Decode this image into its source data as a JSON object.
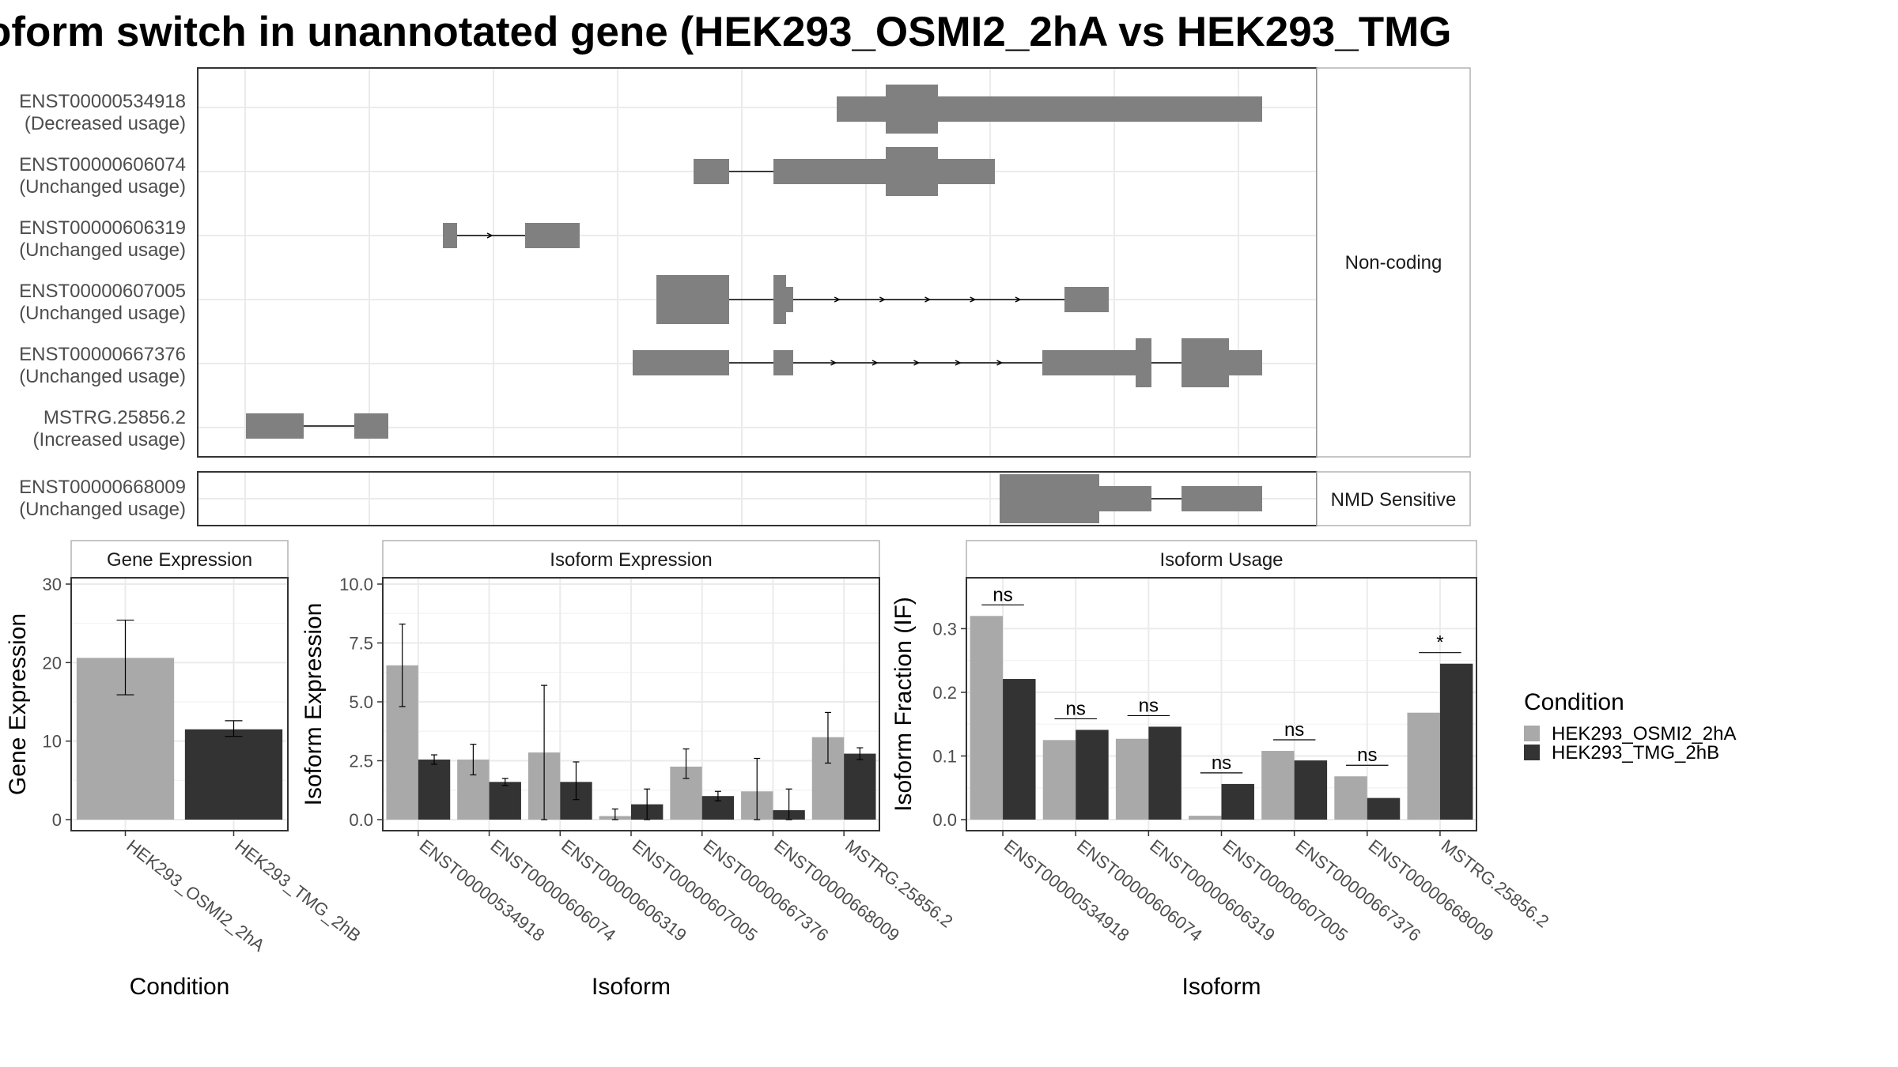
{
  "title": "oform switch in unannotated gene (HEK293_OSMI2_2hA vs HEK293_TMG",
  "colors": {
    "cond1": "#a9a9a9",
    "cond2": "#333333",
    "exon": "#808080",
    "grid": "#ebebeb",
    "border": "#333333",
    "strip_border": "#b3b3b3"
  },
  "transcript_panels": [
    {
      "strip": "Non-coding",
      "tracks": [
        {
          "id": "ENST00000534918",
          "usage": "(Decreased usage)"
        },
        {
          "id": "ENST00000606074",
          "usage": "(Unchanged usage)"
        },
        {
          "id": "ENST00000606319",
          "usage": "(Unchanged usage)"
        },
        {
          "id": "ENST00000607005",
          "usage": "(Unchanged usage)"
        },
        {
          "id": "ENST00000667376",
          "usage": "(Unchanged usage)"
        },
        {
          "id": "MSTRG.25856.2",
          "usage": "(Increased usage)"
        }
      ]
    },
    {
      "strip": "NMD Sensitive",
      "tracks": [
        {
          "id": "ENST00000668009",
          "usage": "(Unchanged usage)"
        }
      ]
    }
  ],
  "chart_data": [
    {
      "type": "bar",
      "title": "Gene Expression",
      "xlabel": "Condition",
      "ylabel": "Gene Expression",
      "ylim": [
        0,
        30
      ],
      "yticks": [
        0,
        10,
        20,
        30
      ],
      "categories": [
        "HEK293_OSMI2_2hA",
        "HEK293_TMG_2hB"
      ],
      "values": [
        20.6,
        11.5
      ],
      "error": [
        [
          15.9,
          25.4
        ],
        [
          10.6,
          12.6
        ]
      ]
    },
    {
      "type": "bar",
      "title": "Isoform Expression",
      "xlabel": "Isoform",
      "ylabel": "Isoform Expression",
      "ylim": [
        0,
        10
      ],
      "yticks": [
        "0.0",
        "2.5",
        "5.0",
        "7.5",
        "10.0"
      ],
      "categories": [
        "ENST00000534918",
        "ENST00000606074",
        "ENST00000606319",
        "ENST00000607005",
        "ENST00000667376",
        "ENST00000668009",
        "MSTRG.25856.2"
      ],
      "series": [
        {
          "name": "HEK293_OSMI2_2hA",
          "values": [
            6.55,
            2.55,
            2.85,
            0.15,
            2.25,
            1.2,
            3.5
          ],
          "error": [
            [
              4.8,
              8.3
            ],
            [
              1.9,
              3.2
            ],
            [
              0.0,
              5.7
            ],
            [
              0.0,
              0.45
            ],
            [
              1.75,
              3.0
            ],
            [
              0.0,
              2.6
            ],
            [
              2.4,
              4.55
            ]
          ]
        },
        {
          "name": "HEK293_TMG_2hB",
          "values": [
            2.55,
            1.6,
            1.6,
            0.65,
            1.0,
            0.4,
            2.8
          ],
          "error": [
            [
              2.35,
              2.75
            ],
            [
              1.45,
              1.75
            ],
            [
              0.85,
              2.45
            ],
            [
              0.0,
              1.3
            ],
            [
              0.8,
              1.2
            ],
            [
              0.0,
              1.3
            ],
            [
              2.55,
              3.05
            ]
          ]
        }
      ]
    },
    {
      "type": "bar",
      "title": "Isoform Usage",
      "xlabel": "Isoform",
      "ylabel": "Isoform Fraction (IF)",
      "ylim": [
        0,
        0.38
      ],
      "yticks": [
        "0.0",
        "0.1",
        "0.2",
        "0.3"
      ],
      "categories": [
        "ENST00000534918",
        "ENST00000606074",
        "ENST00000606319",
        "ENST00000607005",
        "ENST00000667376",
        "ENST00000668009",
        "MSTRG.25856.2"
      ],
      "series": [
        {
          "name": "HEK293_OSMI2_2hA",
          "values": [
            0.32,
            0.125,
            0.127,
            0.006,
            0.108,
            0.068,
            0.168
          ]
        },
        {
          "name": "HEK293_TMG_2hB",
          "values": [
            0.221,
            0.141,
            0.146,
            0.056,
            0.093,
            0.034,
            0.245
          ]
        }
      ],
      "significance": [
        "ns",
        "ns",
        "ns",
        "ns",
        "ns",
        "ns",
        "*"
      ]
    }
  ],
  "legend": {
    "title": "Condition",
    "items": [
      "HEK293_OSMI2_2hA",
      "HEK293_TMG_2hB"
    ]
  }
}
